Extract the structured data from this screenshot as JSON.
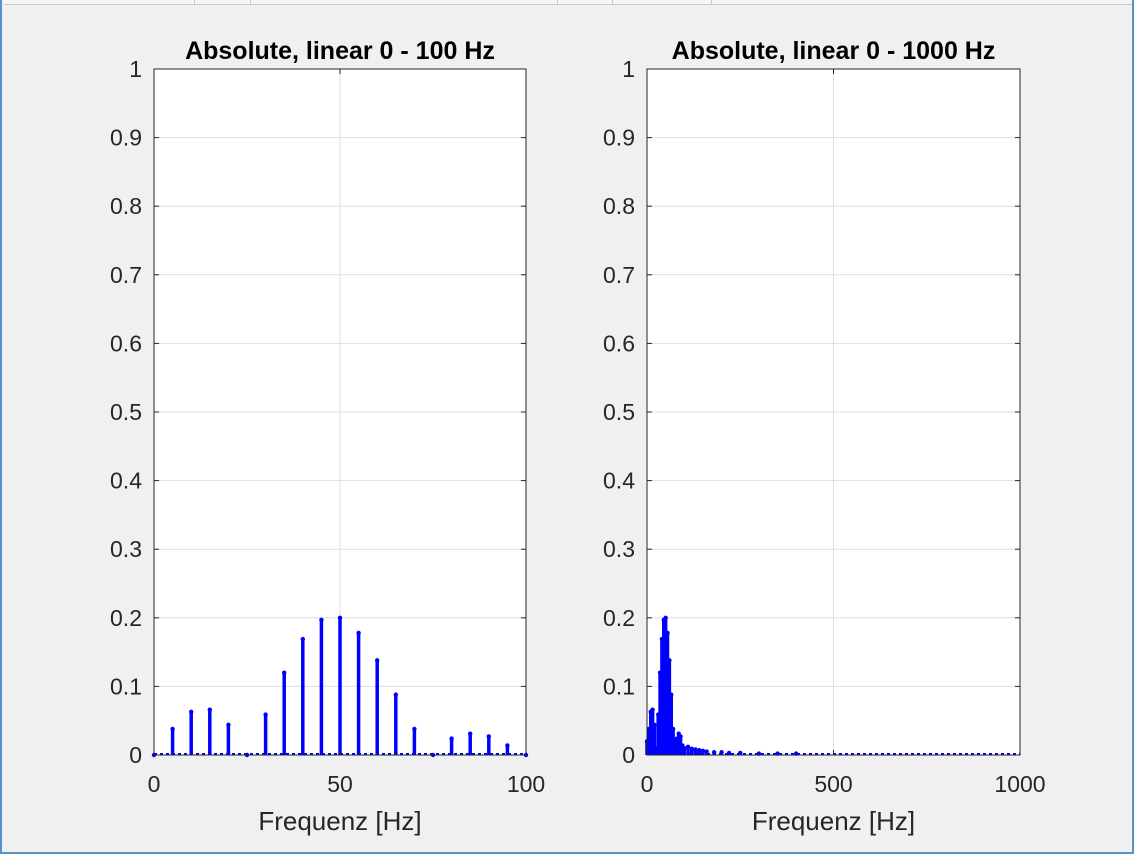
{
  "chart_data": [
    {
      "type": "stem",
      "title": "Absolute, linear 0 - 100 Hz",
      "xlabel": "Frequenz [Hz]",
      "ylabel": "",
      "xlim": [
        0,
        100
      ],
      "ylim": [
        0,
        1
      ],
      "grid": true,
      "xticks": [
        0,
        50,
        100
      ],
      "xtick_labels": [
        "0",
        "50",
        "100"
      ],
      "yticks": [
        0,
        0.1,
        0.2,
        0.3,
        0.4,
        0.5,
        0.6,
        0.7,
        0.8,
        0.9,
        1
      ],
      "ytick_labels": [
        "0",
        "0.1",
        "0.2",
        "0.3",
        "0.4",
        "0.5",
        "0.6",
        "0.7",
        "0.8",
        "0.9",
        "1"
      ],
      "series": [
        {
          "color": "#0000ff",
          "x": [
            0,
            5,
            10,
            15,
            20,
            25,
            30,
            35,
            40,
            45,
            50,
            55,
            60,
            65,
            70,
            75,
            80,
            85,
            90,
            95,
            100
          ],
          "y": [
            0,
            0.038,
            0.063,
            0.066,
            0.044,
            0,
            0.059,
            0.12,
            0.169,
            0.197,
            0.2,
            0.178,
            0.138,
            0.088,
            0.038,
            0,
            0.024,
            0.031,
            0.027,
            0.014,
            0
          ]
        }
      ]
    },
    {
      "type": "stem",
      "title": "Absolute, linear 0 - 1000 Hz",
      "xlabel": "Frequenz [Hz]",
      "ylabel": "",
      "xlim": [
        0,
        1000
      ],
      "ylim": [
        0,
        1
      ],
      "grid": true,
      "xticks": [
        0,
        500,
        1000
      ],
      "xtick_labels": [
        "0",
        "500",
        "1000"
      ],
      "yticks": [
        0,
        0.1,
        0.2,
        0.3,
        0.4,
        0.5,
        0.6,
        0.7,
        0.8,
        0.9,
        1
      ],
      "ytick_labels": [
        "0",
        "0.1",
        "0.2",
        "0.3",
        "0.4",
        "0.5",
        "0.6",
        "0.7",
        "0.8",
        "0.9",
        "1"
      ],
      "series": [
        {
          "color": "#0000ff",
          "x": [
            0,
            5,
            10,
            15,
            20,
            25,
            30,
            35,
            40,
            45,
            50,
            55,
            60,
            65,
            70,
            75,
            80,
            85,
            90,
            95,
            100,
            110,
            120,
            130,
            140,
            150,
            160,
            180,
            200,
            220,
            250,
            300,
            350,
            400
          ],
          "y": [
            0.02,
            0.038,
            0.063,
            0.066,
            0.044,
            0.01,
            0.059,
            0.12,
            0.169,
            0.197,
            0.2,
            0.178,
            0.138,
            0.088,
            0.038,
            0.02,
            0.024,
            0.031,
            0.027,
            0.014,
            0.01,
            0.012,
            0.009,
            0.008,
            0.007,
            0.006,
            0.005,
            0.004,
            0.004,
            0.003,
            0.003,
            0.002,
            0.002,
            0.002
          ]
        }
      ]
    }
  ]
}
